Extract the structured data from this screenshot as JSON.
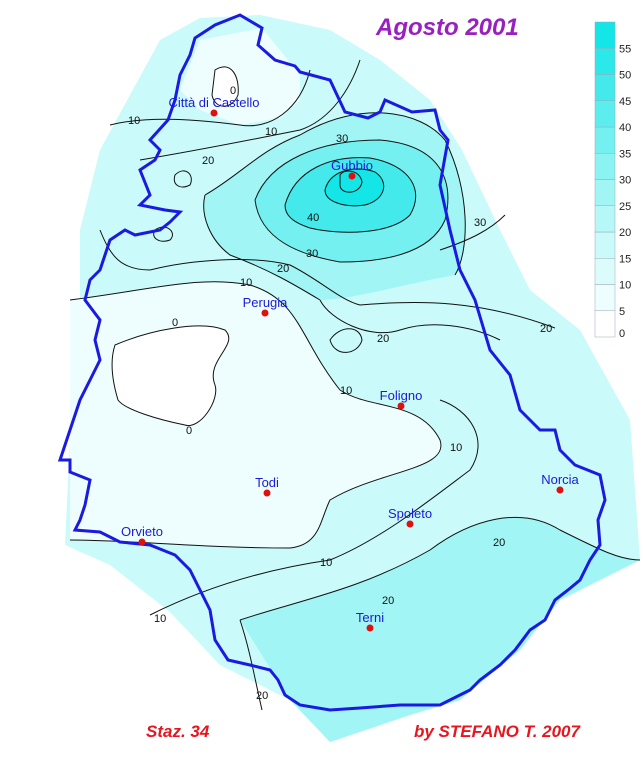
{
  "title": "Agosto 2001",
  "footer": {
    "stations": "Staz. 34",
    "credit": "by STEFANO T. 2007"
  },
  "legend": {
    "ticks": [
      "0",
      "5",
      "10",
      "15",
      "20",
      "25",
      "30",
      "35",
      "40",
      "45",
      "50",
      "55"
    ],
    "colors": [
      "#ffffff",
      "#eefefe",
      "#dcfcfc",
      "#cafafa",
      "#b6f8f8",
      "#a2f5f5",
      "#8cf3f3",
      "#74f0f0",
      "#5cedee",
      "#44eaeb",
      "#2ce8e9",
      "#14e6e7"
    ]
  },
  "cities": [
    {
      "name": "Città di Castello"
    },
    {
      "name": "Gubbio"
    },
    {
      "name": "Perugia"
    },
    {
      "name": "Foligno"
    },
    {
      "name": "Norcia"
    },
    {
      "name": "Todi"
    },
    {
      "name": "Orvieto"
    },
    {
      "name": "Spoleto"
    },
    {
      "name": "Terni"
    }
  ],
  "contour_labels": [
    "0",
    "10",
    "10",
    "20",
    "30",
    "40",
    "30",
    "20",
    "30",
    "10",
    "0",
    "0",
    "20",
    "20",
    "10",
    "10",
    "20",
    "10",
    "20",
    "10",
    "20"
  ],
  "colors": {
    "border": "#1a1ae0",
    "city_dot": "#e01010",
    "title": "#9a1fbf",
    "footer": "#e8141e"
  }
}
